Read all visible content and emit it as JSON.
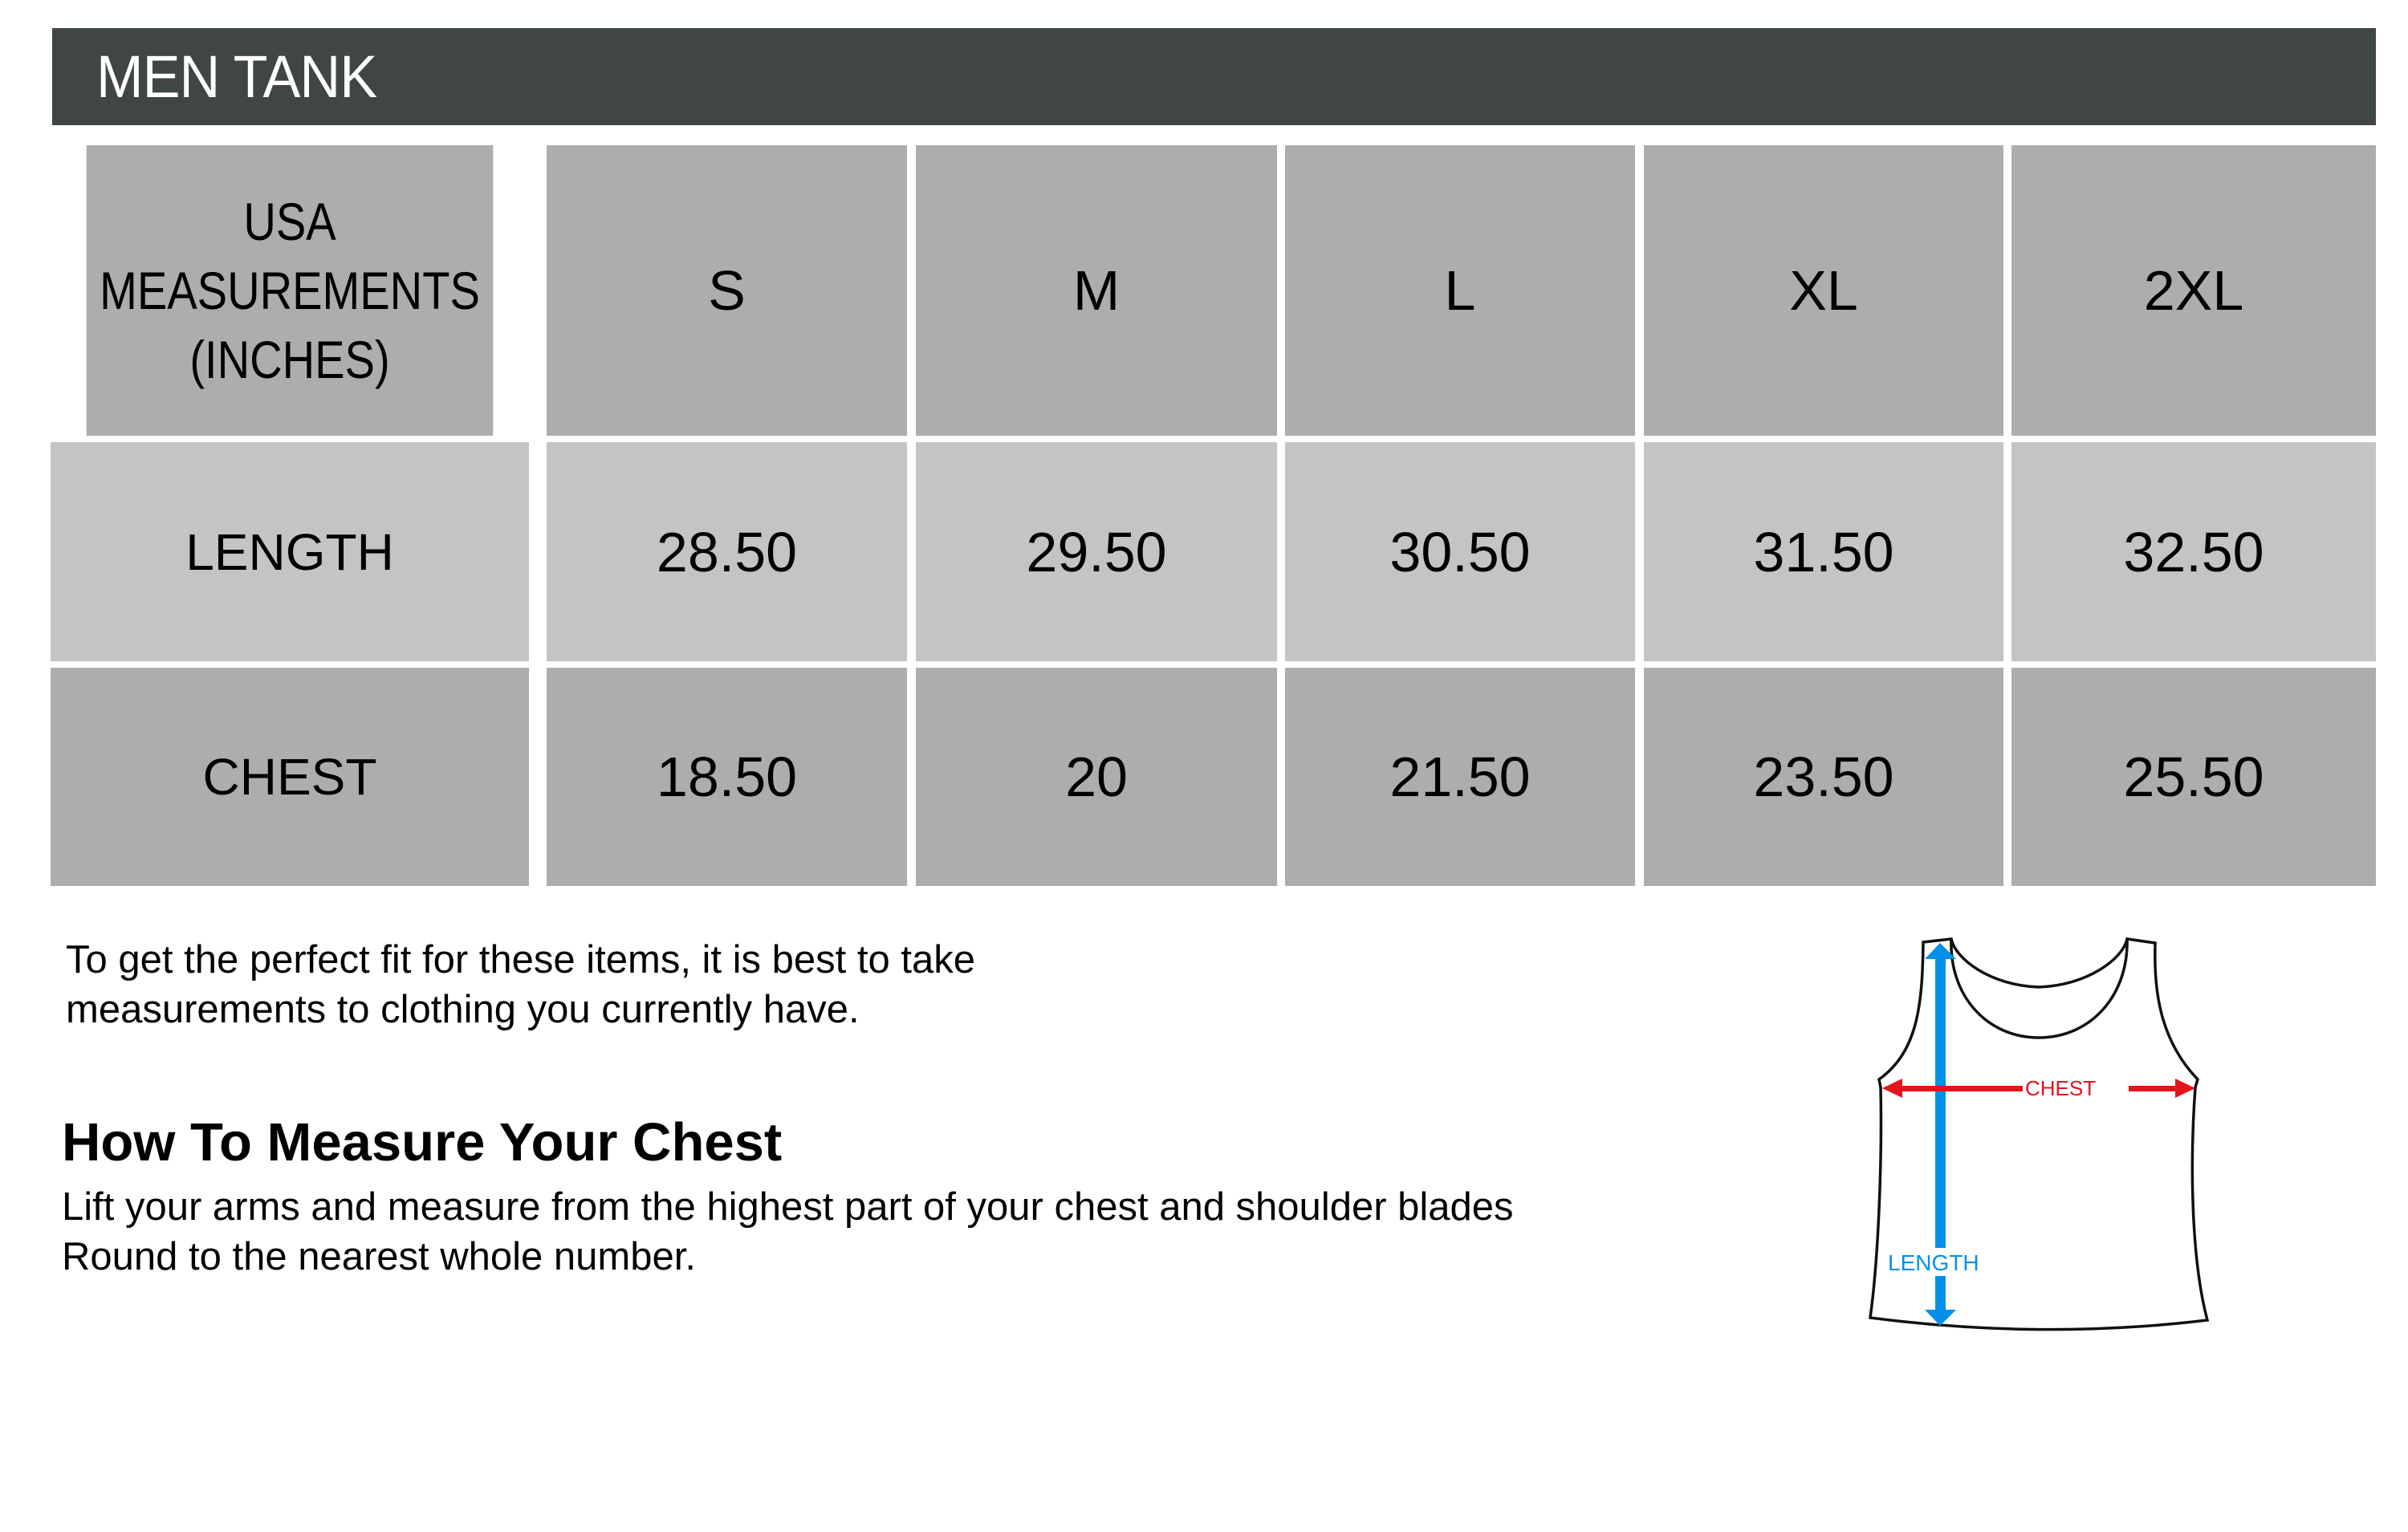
{
  "title": "MEN TANK",
  "table": {
    "header_label": [
      "USA",
      "MEASUREMENTS",
      "(INCHES)"
    ],
    "sizes": [
      "S",
      "M",
      "L",
      "XL",
      "2XL"
    ],
    "rows": [
      {
        "label": "LENGTH",
        "values": [
          "28.50",
          "29.50",
          "30.50",
          "31.50",
          "32.50"
        ]
      },
      {
        "label": "CHEST",
        "values": [
          "18.50",
          "20",
          "21.50",
          "23.50",
          "25.50"
        ]
      }
    ]
  },
  "intro": [
    "To get the perfect fit for these items, it is best to take",
    "measurements to clothing you currently have."
  ],
  "chest_guide": {
    "heading": "How To Measure Your Chest",
    "lines": [
      "Lift your arms and measure from the highest part of your chest and shoulder blades",
      "Round to the nearest whole number."
    ]
  },
  "diagram": {
    "chest_label": "CHEST",
    "length_label": "LENGTH",
    "chest_color": "#e3141b",
    "length_color": "#0590e8"
  },
  "colors": {
    "title_bg": "#404546",
    "header_bg": "#adadad",
    "length_row_bg": "#c4c4c4",
    "chest_row_bg": "#adadad"
  }
}
